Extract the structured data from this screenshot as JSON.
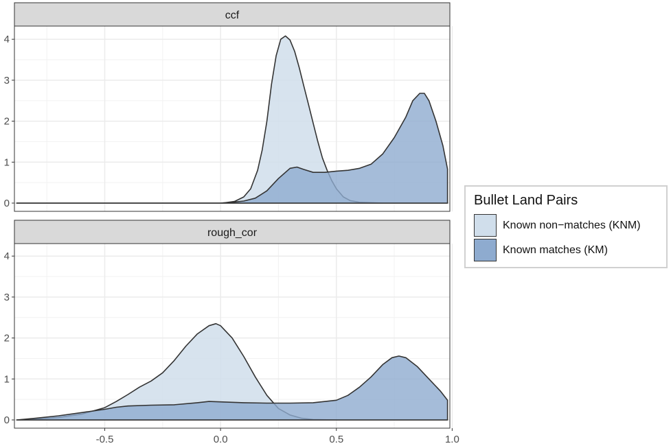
{
  "chart_data": {
    "type": "area",
    "subtype": "density",
    "xlim": [
      -0.89,
      0.99
    ],
    "ylim": [
      0,
      4.1
    ],
    "x_ticks": [
      -0.5,
      0.0,
      0.5,
      1.0
    ],
    "x_tick_labels": [
      "-0.5",
      "0.0",
      "0.5",
      "1.0"
    ],
    "y_ticks": [
      0,
      1,
      2,
      3,
      4
    ],
    "y_tick_labels": [
      "0",
      "1",
      "2",
      "3",
      "4"
    ],
    "grid": true,
    "legend": {
      "title": "Bullet Land Pairs",
      "placement": "right",
      "entries": [
        {
          "label": "Known non−matches (KNM)",
          "color": "#d0deeb"
        },
        {
          "label": "Known matches (KM)",
          "color": "#8eabcf"
        }
      ]
    },
    "facets": [
      {
        "strip": "ccf",
        "series": [
          {
            "name": "Known non−matches (KNM)",
            "points": [
              [
                -0.88,
                0
              ],
              [
                0.0,
                0
              ],
              [
                0.02,
                0.01
              ],
              [
                0.06,
                0.04
              ],
              [
                0.1,
                0.15
              ],
              [
                0.13,
                0.35
              ],
              [
                0.16,
                0.8
              ],
              [
                0.18,
                1.3
              ],
              [
                0.2,
                2.0
              ],
              [
                0.22,
                2.9
              ],
              [
                0.24,
                3.6
              ],
              [
                0.26,
                4.0
              ],
              [
                0.28,
                4.08
              ],
              [
                0.3,
                3.98
              ],
              [
                0.32,
                3.7
              ],
              [
                0.34,
                3.3
              ],
              [
                0.36,
                2.85
              ],
              [
                0.38,
                2.4
              ],
              [
                0.4,
                1.95
              ],
              [
                0.42,
                1.5
              ],
              [
                0.44,
                1.1
              ],
              [
                0.46,
                0.8
              ],
              [
                0.48,
                0.55
              ],
              [
                0.5,
                0.35
              ],
              [
                0.53,
                0.15
              ],
              [
                0.56,
                0.06
              ],
              [
                0.6,
                0.02
              ],
              [
                0.7,
                0
              ],
              [
                0.98,
                0
              ]
            ]
          },
          {
            "name": "Known matches (KM)",
            "points": [
              [
                -0.88,
                0
              ],
              [
                0.0,
                0
              ],
              [
                0.05,
                0.02
              ],
              [
                0.1,
                0.05
              ],
              [
                0.15,
                0.12
              ],
              [
                0.2,
                0.3
              ],
              [
                0.25,
                0.6
              ],
              [
                0.3,
                0.85
              ],
              [
                0.33,
                0.88
              ],
              [
                0.36,
                0.82
              ],
              [
                0.4,
                0.75
              ],
              [
                0.45,
                0.75
              ],
              [
                0.5,
                0.78
              ],
              [
                0.55,
                0.8
              ],
              [
                0.6,
                0.85
              ],
              [
                0.65,
                0.95
              ],
              [
                0.7,
                1.2
              ],
              [
                0.75,
                1.6
              ],
              [
                0.8,
                2.1
              ],
              [
                0.83,
                2.5
              ],
              [
                0.86,
                2.68
              ],
              [
                0.88,
                2.68
              ],
              [
                0.9,
                2.5
              ],
              [
                0.93,
                2.0
              ],
              [
                0.96,
                1.4
              ],
              [
                0.98,
                0.83
              ]
            ]
          }
        ]
      },
      {
        "strip": "rough_cor",
        "series": [
          {
            "name": "Known non−matches (KNM)",
            "points": [
              [
                -0.88,
                0
              ],
              [
                -0.8,
                0.02
              ],
              [
                -0.7,
                0.06
              ],
              [
                -0.6,
                0.14
              ],
              [
                -0.5,
                0.3
              ],
              [
                -0.45,
                0.45
              ],
              [
                -0.4,
                0.62
              ],
              [
                -0.35,
                0.8
              ],
              [
                -0.3,
                0.95
              ],
              [
                -0.25,
                1.15
              ],
              [
                -0.2,
                1.45
              ],
              [
                -0.15,
                1.8
              ],
              [
                -0.1,
                2.1
              ],
              [
                -0.05,
                2.3
              ],
              [
                -0.02,
                2.35
              ],
              [
                0.0,
                2.3
              ],
              [
                0.05,
                2.0
              ],
              [
                0.1,
                1.55
              ],
              [
                0.15,
                1.05
              ],
              [
                0.2,
                0.6
              ],
              [
                0.25,
                0.28
              ],
              [
                0.3,
                0.12
              ],
              [
                0.35,
                0.04
              ],
              [
                0.4,
                0.01
              ],
              [
                0.5,
                0
              ],
              [
                0.98,
                0
              ]
            ]
          },
          {
            "name": "Known matches (KM)",
            "points": [
              [
                -0.88,
                0
              ],
              [
                -0.8,
                0.04
              ],
              [
                -0.7,
                0.1
              ],
              [
                -0.6,
                0.18
              ],
              [
                -0.5,
                0.26
              ],
              [
                -0.45,
                0.31
              ],
              [
                -0.4,
                0.34
              ],
              [
                -0.3,
                0.36
              ],
              [
                -0.2,
                0.37
              ],
              [
                -0.1,
                0.42
              ],
              [
                -0.05,
                0.45
              ],
              [
                0.0,
                0.44
              ],
              [
                0.1,
                0.42
              ],
              [
                0.2,
                0.41
              ],
              [
                0.3,
                0.41
              ],
              [
                0.4,
                0.42
              ],
              [
                0.5,
                0.48
              ],
              [
                0.55,
                0.6
              ],
              [
                0.6,
                0.8
              ],
              [
                0.65,
                1.05
              ],
              [
                0.7,
                1.35
              ],
              [
                0.74,
                1.52
              ],
              [
                0.77,
                1.56
              ],
              [
                0.8,
                1.52
              ],
              [
                0.85,
                1.3
              ],
              [
                0.9,
                1.0
              ],
              [
                0.95,
                0.7
              ],
              [
                0.98,
                0.48
              ]
            ]
          }
        ]
      }
    ]
  }
}
